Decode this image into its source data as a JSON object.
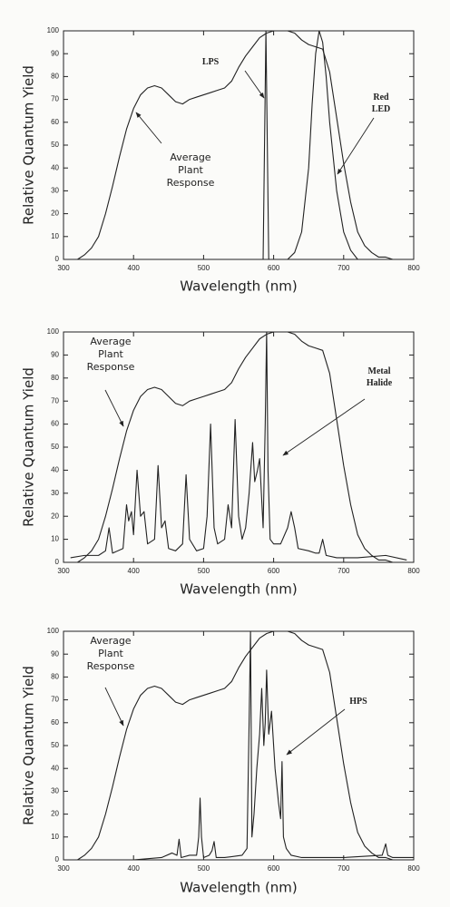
{
  "chart_data": [
    {
      "type": "line",
      "xlabel": "Wavelength (nm)",
      "ylabel": "Relative Quantum Yield",
      "xlim": [
        300,
        800
      ],
      "ylim": [
        0,
        100
      ],
      "xticks": [
        300,
        400,
        500,
        600,
        700,
        800
      ],
      "yticks": [
        0,
        10,
        20,
        30,
        40,
        50,
        60,
        70,
        80,
        90,
        100
      ],
      "grid": false,
      "series": [
        {
          "name": "Average Plant Response",
          "color": "#222222",
          "x": [
            320,
            330,
            340,
            350,
            360,
            370,
            380,
            390,
            400,
            410,
            420,
            430,
            440,
            450,
            460,
            470,
            480,
            490,
            500,
            510,
            520,
            530,
            540,
            550,
            560,
            570,
            580,
            590,
            600,
            610,
            620,
            630,
            640,
            650,
            660,
            670,
            680,
            690,
            700,
            710,
            720,
            730,
            740,
            750,
            760,
            770,
            780
          ],
          "values": [
            0,
            2,
            5,
            10,
            20,
            32,
            45,
            57,
            66,
            72,
            75,
            76,
            75,
            72,
            69,
            68,
            70,
            71,
            72,
            73,
            74,
            75,
            78,
            84,
            89,
            93,
            97,
            99,
            100,
            100,
            100,
            99,
            96,
            94,
            93,
            92,
            82,
            62,
            42,
            25,
            12,
            6,
            3,
            1,
            1,
            0,
            0
          ]
        },
        {
          "name": "LPS",
          "color": "#222222",
          "x": [
            575,
            585,
            587,
            589,
            591,
            593,
            605
          ],
          "values": [
            0,
            0,
            50,
            100,
            50,
            0,
            0
          ]
        },
        {
          "name": "Red LED",
          "color": "#222222",
          "x": [
            620,
            630,
            640,
            650,
            655,
            660,
            665,
            670,
            675,
            680,
            690,
            700,
            710,
            720
          ],
          "values": [
            0,
            3,
            12,
            40,
            68,
            90,
            100,
            95,
            80,
            60,
            30,
            12,
            4,
            0
          ]
        }
      ]
    },
    {
      "type": "line",
      "xlabel": "Wavelength (nm)",
      "ylabel": "Relative Quantum Yield",
      "xlim": [
        300,
        800
      ],
      "ylim": [
        0,
        100
      ],
      "xticks": [
        300,
        400,
        500,
        600,
        700,
        800
      ],
      "yticks": [
        0,
        10,
        20,
        30,
        40,
        50,
        60,
        70,
        80,
        90,
        100
      ],
      "grid": false,
      "series": [
        {
          "name": "Average Plant Response",
          "color": "#222222",
          "x": [
            320,
            330,
            340,
            350,
            360,
            370,
            380,
            390,
            400,
            410,
            420,
            430,
            440,
            450,
            460,
            470,
            480,
            490,
            500,
            510,
            520,
            530,
            540,
            550,
            560,
            570,
            580,
            590,
            600,
            610,
            620,
            630,
            640,
            650,
            660,
            670,
            680,
            690,
            700,
            710,
            720,
            730,
            740,
            750,
            760,
            770,
            780
          ],
          "values": [
            0,
            2,
            5,
            10,
            20,
            32,
            45,
            57,
            66,
            72,
            75,
            76,
            75,
            72,
            69,
            68,
            70,
            71,
            72,
            73,
            74,
            75,
            78,
            84,
            89,
            93,
            97,
            99,
            100,
            100,
            100,
            99,
            96,
            94,
            93,
            92,
            82,
            62,
            42,
            25,
            12,
            6,
            3,
            1,
            1,
            0,
            0
          ]
        },
        {
          "name": "Metal Halide",
          "color": "#222222",
          "x": [
            310,
            330,
            350,
            360,
            365,
            370,
            385,
            390,
            393,
            397,
            400,
            405,
            410,
            415,
            420,
            430,
            435,
            440,
            445,
            450,
            460,
            470,
            475,
            480,
            490,
            500,
            505,
            510,
            515,
            520,
            530,
            535,
            540,
            545,
            550,
            555,
            560,
            565,
            570,
            573,
            577,
            580,
            585,
            588,
            590,
            592,
            595,
            600,
            610,
            620,
            625,
            630,
            635,
            650,
            660,
            665,
            670,
            675,
            690,
            720,
            760,
            790
          ],
          "values": [
            2,
            3,
            3,
            5,
            15,
            4,
            6,
            25,
            18,
            22,
            12,
            40,
            20,
            22,
            8,
            10,
            42,
            15,
            18,
            6,
            5,
            8,
            38,
            10,
            5,
            6,
            20,
            60,
            15,
            8,
            10,
            25,
            15,
            62,
            20,
            10,
            15,
            30,
            52,
            35,
            40,
            45,
            15,
            60,
            100,
            40,
            10,
            8,
            8,
            15,
            22,
            15,
            6,
            5,
            4,
            4,
            10,
            3,
            2,
            2,
            3,
            1
          ]
        }
      ]
    },
    {
      "type": "line",
      "xlabel": "Wavelength (nm)",
      "ylabel": "Relative Quantum Yield",
      "xlim": [
        300,
        800
      ],
      "ylim": [
        0,
        100
      ],
      "xticks": [
        300,
        400,
        500,
        600,
        700,
        800
      ],
      "yticks": [
        0,
        10,
        20,
        30,
        40,
        50,
        60,
        70,
        80,
        90,
        100
      ],
      "grid": false,
      "series": [
        {
          "name": "Average Plant Response",
          "color": "#222222",
          "x": [
            320,
            330,
            340,
            350,
            360,
            370,
            380,
            390,
            400,
            410,
            420,
            430,
            440,
            450,
            460,
            470,
            480,
            490,
            500,
            510,
            520,
            530,
            540,
            550,
            560,
            570,
            580,
            590,
            600,
            610,
            620,
            630,
            640,
            650,
            660,
            670,
            680,
            690,
            700,
            710,
            720,
            730,
            740,
            750,
            760,
            770,
            780
          ],
          "values": [
            0,
            2,
            5,
            10,
            20,
            32,
            45,
            57,
            66,
            72,
            75,
            76,
            75,
            72,
            69,
            68,
            70,
            71,
            72,
            73,
            74,
            75,
            78,
            84,
            89,
            93,
            97,
            99,
            100,
            100,
            100,
            99,
            96,
            94,
            93,
            92,
            82,
            62,
            42,
            25,
            12,
            6,
            3,
            1,
            1,
            0,
            0
          ]
        },
        {
          "name": "HPS",
          "color": "#222222",
          "x": [
            310,
            400,
            440,
            455,
            462,
            465,
            468,
            480,
            490,
            493,
            495,
            497,
            500,
            508,
            512,
            515,
            518,
            530,
            555,
            562,
            565,
            567,
            569,
            572,
            576,
            580,
            583,
            586,
            588,
            590,
            593,
            597,
            602,
            607,
            610,
            612,
            614,
            618,
            625,
            640,
            700,
            755,
            760,
            763,
            770,
            800
          ],
          "values": [
            0,
            0,
            1,
            3,
            2,
            9,
            1,
            2,
            2,
            10,
            27,
            10,
            1,
            2,
            4,
            8,
            1,
            1,
            2,
            5,
            60,
            100,
            10,
            20,
            40,
            55,
            75,
            50,
            60,
            83,
            55,
            65,
            40,
            25,
            18,
            43,
            10,
            5,
            2,
            1,
            1,
            2,
            7,
            2,
            1,
            1
          ]
        }
      ]
    }
  ]
}
